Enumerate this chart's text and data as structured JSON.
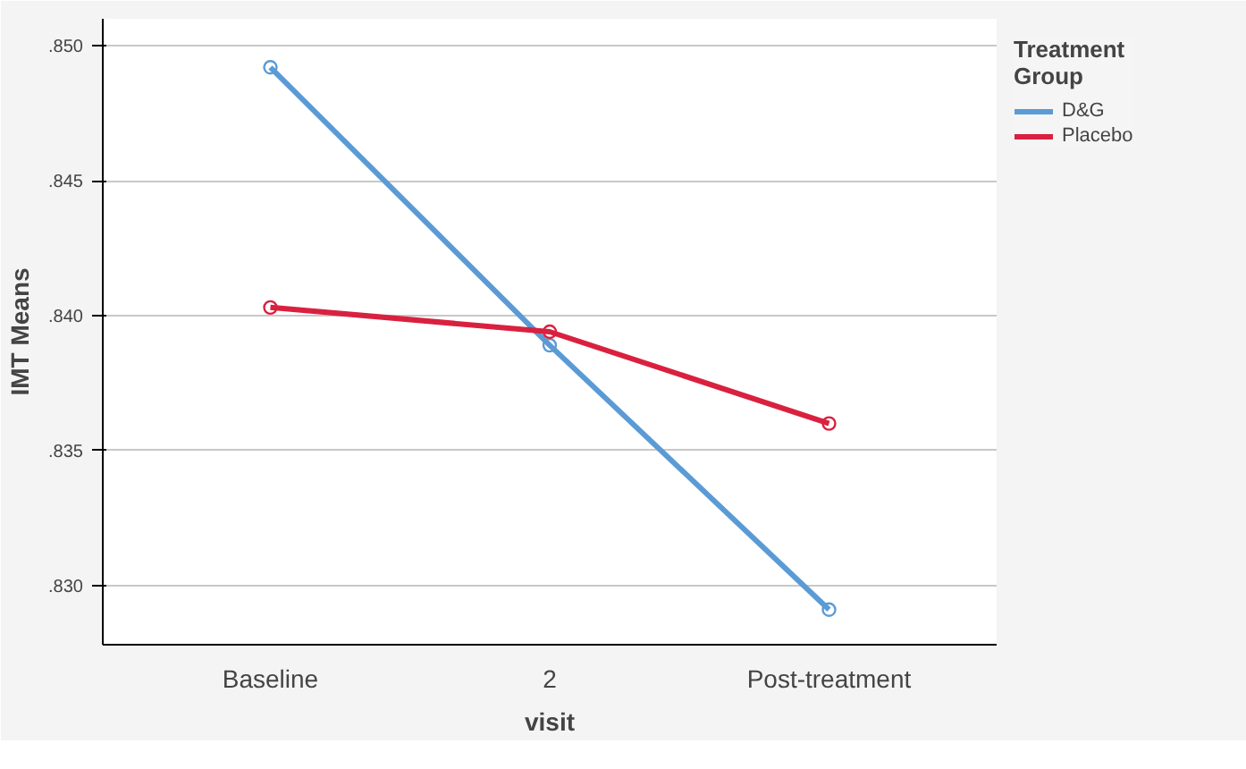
{
  "chart_data": {
    "type": "line",
    "xlabel": "visit",
    "ylabel": "IMT Means",
    "legend_title": "Treatment Group",
    "categories": [
      "Baseline",
      "2",
      "Post-treatment"
    ],
    "series": [
      {
        "name": "D&G",
        "color": "#5b9bd5",
        "values": [
          0.8492,
          0.8389,
          0.8291
        ]
      },
      {
        "name": "Placebo",
        "color": "#d9213f",
        "values": [
          0.8403,
          0.8394,
          0.836
        ]
      }
    ],
    "ylim": [
      0.8278,
      0.851
    ],
    "yticks": [
      {
        "value": 0.83,
        "label": ".830"
      },
      {
        "value": 0.835,
        "label": ".835"
      },
      {
        "value": 0.84,
        "label": ".840"
      },
      {
        "value": 0.845,
        "label": ".845"
      },
      {
        "value": 0.85,
        "label": ".850"
      }
    ],
    "grid": "y",
    "legend": "right",
    "marker": "circle",
    "line_style": "solid"
  }
}
